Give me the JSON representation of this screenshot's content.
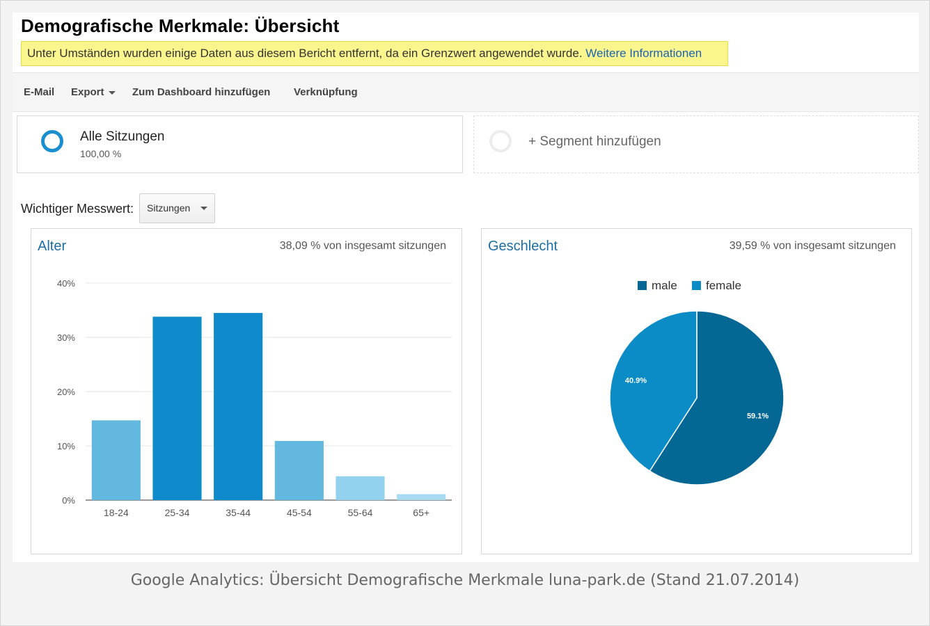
{
  "page": {
    "title": "Demografische Merkmale: Übersicht",
    "warning_text": "Unter Umständen wurden einige Daten aus diesem Bericht entfernt, da ein Grenzwert angewendet wurde.",
    "warning_link": "Weitere Informationen"
  },
  "toolbar": {
    "email": "E-Mail",
    "export": "Export",
    "dashboard": "Zum Dashboard hinzufügen",
    "link": "Verknüpfung"
  },
  "segments": {
    "all_name": "Alle Sitzungen",
    "all_pct": "100,00 %",
    "all_color": "#1a8fd0",
    "add_label": "+ Segment hinzufügen"
  },
  "metric": {
    "label": "Wichtiger Messwert:",
    "selected": "Sitzungen"
  },
  "age_panel": {
    "title": "Alter",
    "subtitle": "38,09 % von insgesamt sitzungen"
  },
  "gender_panel": {
    "title": "Geschlecht",
    "subtitle": "39,59 % von insgesamt sitzungen"
  },
  "caption": "Google Analytics: Übersicht Demografische Merkmale luna-park.de (Stand 21.07.2014)",
  "chart_data": [
    {
      "type": "bar",
      "categories": [
        "18-24",
        "25-34",
        "35-44",
        "45-54",
        "55-64",
        "65+"
      ],
      "values": [
        14.7,
        33.8,
        34.5,
        10.9,
        4.4,
        1.1
      ],
      "colors": [
        "#63b8e0",
        "#0f8bcb",
        "#0f8bcb",
        "#63b8e0",
        "#93d2ef",
        "#a8dbf2"
      ],
      "yticks": [
        "0%",
        "10%",
        "20%",
        "30%",
        "40%"
      ],
      "ylim": [
        0,
        40
      ],
      "grid": true
    },
    {
      "type": "pie",
      "labels": [
        "male",
        "female"
      ],
      "values": [
        59.1,
        40.9
      ],
      "data_labels": [
        "59.1%",
        "40.9%"
      ],
      "colors": [
        "#056793",
        "#0b8cc6"
      ],
      "legend": "top"
    }
  ]
}
